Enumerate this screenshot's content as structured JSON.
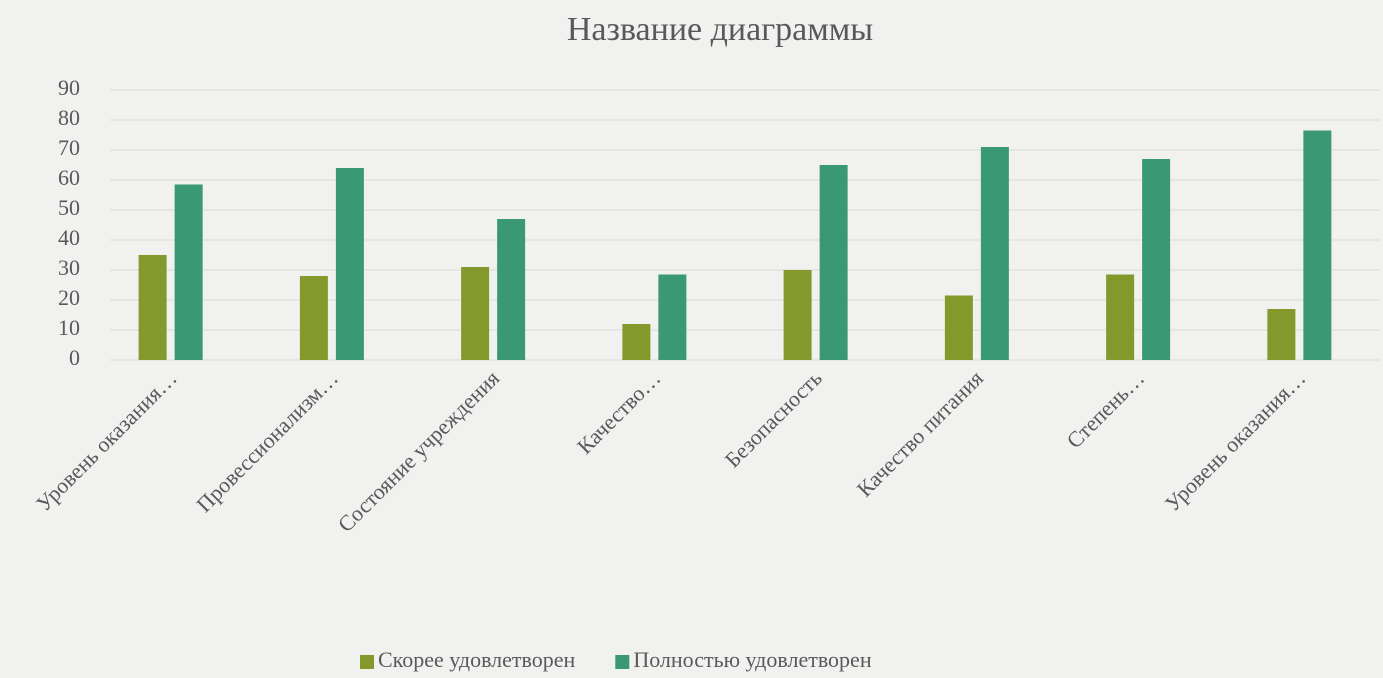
{
  "chart_data": {
    "type": "bar",
    "title": "Название диаграммы",
    "categories": [
      "Уровень оказания…",
      "Провессионализм…",
      "Состояние учреждения",
      "Качество…",
      "Безопасность",
      "Качество питания",
      "Степень…",
      "Уровень оказания…"
    ],
    "series": [
      {
        "name": "Скорее удовлетворен",
        "color": "#84992c",
        "values": [
          35,
          28,
          31,
          12,
          30,
          21.5,
          28.5,
          17
        ]
      },
      {
        "name": "Полностью удовлетворен",
        "color": "#3a9874",
        "values": [
          58.5,
          64,
          47,
          28.5,
          65,
          71,
          67,
          76.5
        ]
      }
    ],
    "ylim": [
      0,
      90
    ],
    "yticks": [
      0,
      10,
      20,
      30,
      40,
      50,
      60,
      70,
      80,
      90
    ],
    "grid": true,
    "legend": "bottom"
  }
}
